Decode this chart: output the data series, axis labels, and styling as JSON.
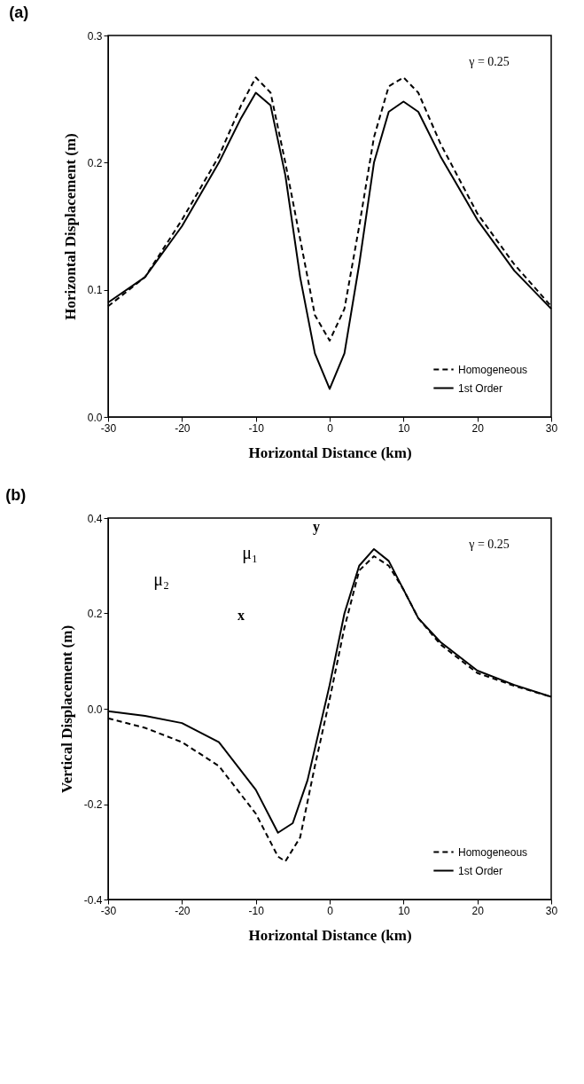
{
  "chart_data": [
    {
      "type": "line",
      "title": "(a)",
      "xlabel": "Horizontal Distance (km)",
      "ylabel": "Horizontal Displacement (m)",
      "xlim": [
        -30,
        30
      ],
      "xticks": [
        -30,
        -20,
        -10,
        {
          "value": 0,
          "label": "0"
        },
        10,
        20,
        30
      ],
      "ylim": [
        0,
        0.3
      ],
      "yticks": [
        {
          "value": 0,
          "label": "0.0"
        },
        0.1,
        0.2,
        0.3
      ],
      "legend": "bottom right",
      "grid": false,
      "annotations": [
        "γ = 0.25"
      ],
      "series": [
        {
          "name": "Homogeneous",
          "color": "#000000",
          "line_style": "dashed",
          "x": [
            -30,
            -25,
            -20,
            -15,
            -12,
            -10,
            -8,
            -6,
            -4,
            -2,
            0,
            2,
            4,
            6,
            8,
            10,
            12,
            15,
            20,
            25,
            30
          ],
          "values": [
            0.087,
            0.11,
            0.155,
            0.205,
            0.245,
            0.267,
            0.255,
            0.2,
            0.14,
            0.08,
            0.06,
            0.085,
            0.15,
            0.22,
            0.26,
            0.267,
            0.255,
            0.215,
            0.16,
            0.12,
            0.087
          ]
        },
        {
          "name": "1st Order",
          "color": "#000000",
          "line_style": "solid",
          "x": [
            -30,
            -25,
            -20,
            -15,
            -12,
            -10,
            -8,
            -6,
            -4,
            -2,
            0,
            2,
            4,
            6,
            8,
            10,
            12,
            15,
            20,
            25,
            30
          ],
          "values": [
            0.09,
            0.11,
            0.15,
            0.2,
            0.235,
            0.255,
            0.245,
            0.19,
            0.11,
            0.05,
            0.022,
            0.05,
            0.12,
            0.2,
            0.24,
            0.248,
            0.24,
            0.205,
            0.155,
            0.115,
            0.085
          ]
        }
      ]
    },
    {
      "type": "line",
      "title": "(b)",
      "xlabel": "Horizontal Distance (km)",
      "ylabel": "Vertical Displacement (m)",
      "xlim": [
        -30,
        30
      ],
      "xticks": [
        -30,
        -20,
        -10,
        {
          "value": 0,
          "label": "0"
        },
        10,
        20,
        30
      ],
      "ylim": [
        -0.4,
        0.4
      ],
      "yticks": [
        -0.4,
        -0.2,
        {
          "value": 0,
          "label": "0.0"
        },
        0.2,
        0.4
      ],
      "legend": "bottom right",
      "grid": false,
      "annotations": [
        "γ = 0.25",
        "μ₂",
        "μ₁",
        "y",
        "x"
      ],
      "series": [
        {
          "name": "Homogeneous",
          "color": "#000000",
          "line_style": "dashed",
          "x": [
            -30,
            -25,
            -20,
            -15,
            -10,
            -7,
            -6,
            -4,
            -2,
            0,
            2,
            4,
            6,
            8,
            10,
            12,
            15,
            20,
            25,
            30
          ],
          "values": [
            -0.02,
            -0.04,
            -0.07,
            -0.12,
            -0.22,
            -0.31,
            -0.32,
            -0.27,
            -0.12,
            0.02,
            0.17,
            0.29,
            0.32,
            0.3,
            0.25,
            0.19,
            0.135,
            0.075,
            0.048,
            0.025
          ]
        },
        {
          "name": "1st Order",
          "color": "#000000",
          "line_style": "solid",
          "x": [
            -30,
            -25,
            -20,
            -15,
            -10,
            -7,
            -5,
            -3,
            0,
            2,
            4,
            6,
            8,
            10,
            12,
            15,
            20,
            25,
            30
          ],
          "values": [
            -0.005,
            -0.015,
            -0.03,
            -0.07,
            -0.17,
            -0.26,
            -0.24,
            -0.15,
            0.05,
            0.2,
            0.3,
            0.335,
            0.31,
            0.25,
            0.19,
            0.14,
            0.08,
            0.05,
            0.025
          ]
        }
      ]
    }
  ]
}
